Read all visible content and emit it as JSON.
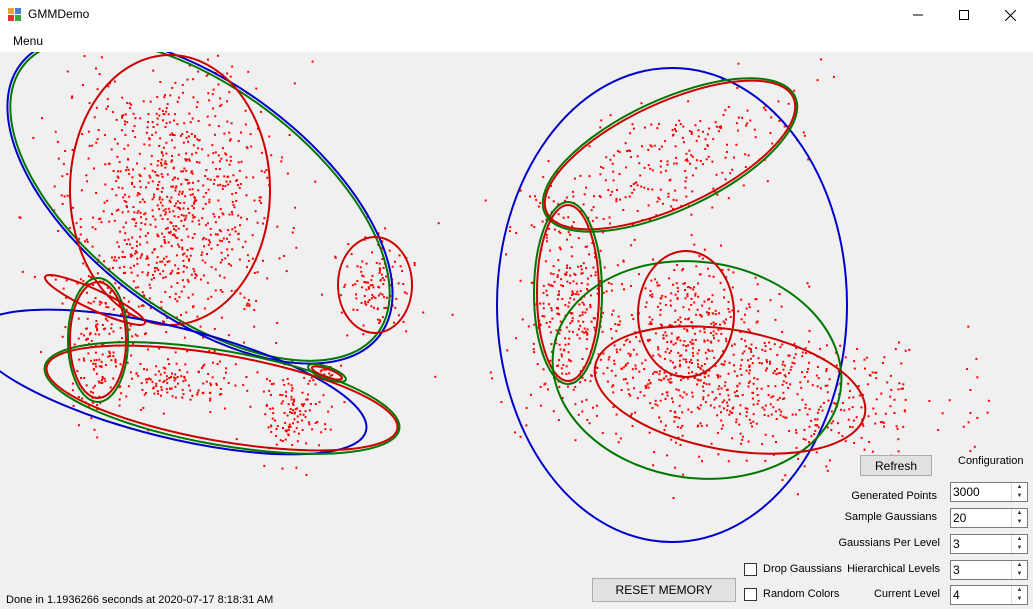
{
  "window": {
    "title": "GMMDemo"
  },
  "menu": {
    "items": [
      "Menu"
    ]
  },
  "buttons": {
    "refresh": "Refresh",
    "reset_memory": "RESET MEMORY"
  },
  "configuration": {
    "title": "Configuration",
    "fields": [
      {
        "label": "Generated Points",
        "value": "3000"
      },
      {
        "label": "Sample Gaussians",
        "value": "20"
      },
      {
        "label": "Gaussians Per Level",
        "value": "3"
      },
      {
        "label": "Hierarchical Levels",
        "value": "3"
      },
      {
        "label": "Current Level",
        "value": "4"
      }
    ]
  },
  "checkboxes": [
    {
      "label": "Drop Gaussians",
      "checked": false
    },
    {
      "label": "Random Colors",
      "checked": false
    }
  ],
  "status": {
    "text": "Done in 1.1936266 seconds at 2020-07-17 8:18:31 AM"
  },
  "colors": {
    "points": "#ff0000",
    "level_1": "#0000cc",
    "level_2": "#007700",
    "level_3": "#cc0000"
  }
}
